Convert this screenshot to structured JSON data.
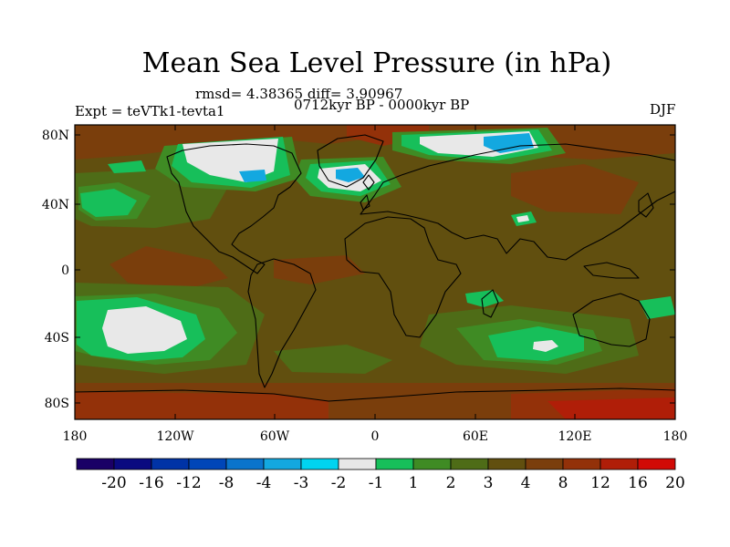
{
  "title": "Mean Sea Level Pressure (in hPa)",
  "stats_text": "rmsd= 4.38365 diff= 3.90967",
  "experiment_text": "Expt = teVTk1-tevta1",
  "period_text": "0712kyr BP - 0000kyr BP",
  "season_text": "DJF",
  "lat_labels": [
    "80N",
    "40N",
    "0",
    "40S",
    "80S"
  ],
  "lon_labels": [
    "180",
    "120W",
    "60W",
    "0",
    "60E",
    "120E",
    "180"
  ],
  "colorbar": {
    "colors": [
      "#1a0066",
      "#0a0a80",
      "#0033a6",
      "#0046b8",
      "#0a74cc",
      "#13a8e0",
      "#00d4f0",
      "#e8e8e8",
      "#17bf5a",
      "#3f8b24",
      "#4e6c17",
      "#614f0f",
      "#7a3e0c",
      "#933109",
      "#b01e08",
      "#d10a06"
    ],
    "labels": [
      "-20",
      "-16",
      "-12",
      "-8",
      "-4",
      "-3",
      "-2",
      "-1",
      "1",
      "2",
      "3",
      "4",
      "8",
      "12",
      "16",
      "20"
    ]
  },
  "colors": {
    "background_field": "#614f0f",
    "high_field": "#7a3e0c",
    "mid_field": "#4e6c17",
    "low_field": "#3f8b24",
    "green_field": "#17bf5a",
    "white_field": "#e8e8e8",
    "cyan_field": "#13a8e0"
  }
}
